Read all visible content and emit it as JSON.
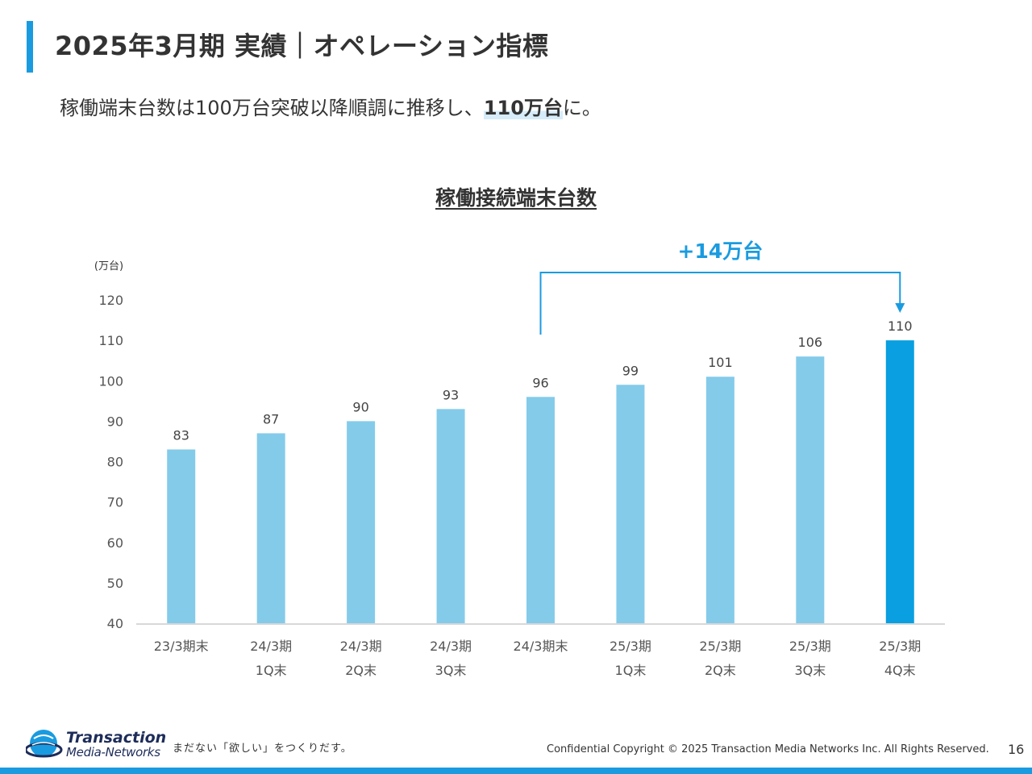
{
  "slide": {
    "title": "2025年3月期 実績｜オペレーション指標",
    "headline_prefix": "稼働端末台数は100万台突破以降順調に推移し、",
    "headline_highlight": "110万台",
    "headline_suffix": "に。",
    "page_number": "16"
  },
  "chart_data": {
    "type": "bar",
    "title": "稼働接続端末台数",
    "unit_label": "(万台)",
    "categories": [
      [
        "23/3期末"
      ],
      [
        "24/3期",
        "1Q末"
      ],
      [
        "24/3期",
        "2Q末"
      ],
      [
        "24/3期",
        "3Q末"
      ],
      [
        "24/3期末"
      ],
      [
        "25/3期",
        "1Q末"
      ],
      [
        "25/3期",
        "2Q末"
      ],
      [
        "25/3期",
        "3Q末"
      ],
      [
        "25/3期",
        "4Q末"
      ]
    ],
    "values": [
      83,
      87,
      90,
      93,
      96,
      99,
      101,
      106,
      110
    ],
    "ylim": [
      40,
      120
    ],
    "yticks": [
      40,
      50,
      60,
      70,
      80,
      90,
      100,
      110,
      120
    ],
    "grid": false,
    "colors": {
      "bar": "#84cbea",
      "highlight_bar": "#099fe0",
      "annotation": "#1a9be0"
    },
    "highlight_index": 8,
    "annotation": {
      "text": "+14万台",
      "from_index": 4,
      "to_index": 8
    }
  },
  "footer": {
    "logo_line1": "Transaction",
    "logo_line2": "Media-Networks",
    "tagline": "まだない「欲しい」をつくりだす。",
    "copyright": "Confidential  Copyright © 2025 Transaction Media Networks Inc. All Rights Reserved."
  }
}
